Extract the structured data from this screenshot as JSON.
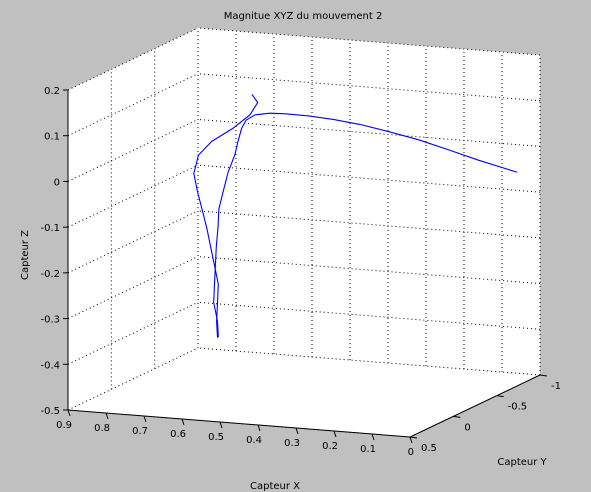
{
  "chart_data": {
    "type": "line3d",
    "title": "Magnitue XYZ du mouvement 2",
    "xlabel": "Capteur X",
    "ylabel": "Capteur Y",
    "zlabel": "Capteur Z",
    "xlim": [
      0,
      0.9
    ],
    "ylim": [
      -1,
      0.5
    ],
    "zlim": [
      -0.5,
      0.2
    ],
    "x_ticks": [
      "0.9",
      "0.8",
      "0.7",
      "0.6",
      "0.5",
      "0.4",
      "0.3",
      "0.2",
      "0.1",
      "0"
    ],
    "y_ticks": [
      "-1",
      "-0.5",
      "0",
      "0.5"
    ],
    "z_ticks": [
      "0.2",
      "0.1",
      "0",
      "-0.1",
      "-0.2",
      "-0.3",
      "-0.4",
      "-0.5"
    ],
    "grid": true,
    "line_color": "#0000ff",
    "background_color": "#c0c0c0",
    "series": [
      {
        "points": [
          [
            0.55,
            0.3,
            -0.335
          ],
          [
            0.55,
            0.31,
            -0.3
          ],
          [
            0.56,
            0.31,
            -0.26
          ],
          [
            0.56,
            0.3,
            -0.22
          ],
          [
            0.56,
            0.29,
            -0.18
          ],
          [
            0.56,
            0.28,
            -0.14
          ],
          [
            0.56,
            0.26,
            -0.1
          ],
          [
            0.56,
            0.25,
            -0.06
          ],
          [
            0.55,
            0.24,
            -0.02
          ],
          [
            0.54,
            0.23,
            0.02
          ],
          [
            0.52,
            0.24,
            0.06
          ],
          [
            0.51,
            0.25,
            0.09
          ],
          [
            0.5,
            0.25,
            0.12
          ],
          [
            0.5,
            0.2,
            0.133
          ],
          [
            0.49,
            0.14,
            0.14
          ],
          [
            0.46,
            0.1,
            0.142
          ],
          [
            0.43,
            0.05,
            0.138
          ],
          [
            0.39,
            -0.04,
            0.128
          ],
          [
            0.35,
            -0.15,
            0.113
          ],
          [
            0.31,
            -0.28,
            0.093
          ],
          [
            0.27,
            -0.42,
            0.068
          ],
          [
            0.22,
            -0.56,
            0.04
          ],
          [
            0.17,
            -0.7,
            0.008
          ],
          [
            0.12,
            -0.82,
            -0.022
          ],
          [
            0.05,
            -0.95,
            -0.055
          ]
        ]
      },
      {
        "points": [
          [
            0.55,
            0.31,
            -0.335
          ],
          [
            0.55,
            0.32,
            -0.3
          ],
          [
            0.55,
            0.31,
            -0.26
          ],
          [
            0.55,
            0.3,
            -0.22
          ],
          [
            0.56,
            0.3,
            -0.18
          ],
          [
            0.57,
            0.3,
            -0.14
          ],
          [
            0.58,
            0.3,
            -0.1
          ],
          [
            0.59,
            0.31,
            -0.06
          ],
          [
            0.6,
            0.32,
            -0.02
          ],
          [
            0.61,
            0.32,
            0.02
          ],
          [
            0.6,
            0.31,
            0.06
          ],
          [
            0.57,
            0.29,
            0.09
          ],
          [
            0.52,
            0.26,
            0.12
          ],
          [
            0.48,
            0.24,
            0.15
          ],
          [
            0.46,
            0.24,
            0.178
          ],
          [
            0.47,
            0.26,
            0.196
          ]
        ]
      }
    ]
  }
}
